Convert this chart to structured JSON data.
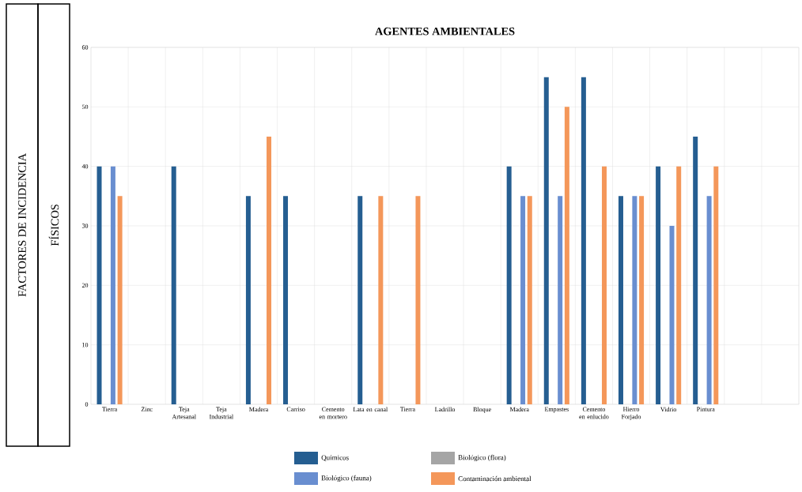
{
  "chart_data": {
    "type": "bar",
    "title": "AGENTES AMBIENTALES",
    "annotations": [
      "FACTORES DE INCIDENCIA",
      "FÍSICOS"
    ],
    "categories": [
      "Tierra",
      "Zinc",
      "Teja Artesanal",
      "Teja Industrial",
      "Madera",
      "Carriso",
      "Cemento en mortero",
      "Lata en canal",
      "Tierra",
      "Ladrillo",
      "Bloque",
      "Madera",
      "Empastes",
      "Cemento en enlucido",
      "Hierro Forjado",
      "Vidrio",
      "Pintura",
      null,
      null
    ],
    "series": [
      {
        "name": "Químicos",
        "color": "#255e91",
        "values": [
          40,
          null,
          40,
          null,
          35,
          35,
          null,
          35,
          null,
          null,
          null,
          40,
          55,
          55,
          35,
          40,
          45,
          null,
          null
        ]
      },
      {
        "name": "Biológico (flora)",
        "color": "#a5a5a5",
        "values": [
          null,
          null,
          null,
          null,
          null,
          null,
          null,
          null,
          null,
          null,
          null,
          null,
          null,
          null,
          null,
          null,
          null,
          null,
          null
        ]
      },
      {
        "name": "Biológico (fauna)",
        "color": "#698ed0",
        "values": [
          40,
          null,
          null,
          null,
          null,
          null,
          null,
          null,
          null,
          null,
          null,
          35,
          35,
          null,
          35,
          30,
          35,
          null,
          null
        ]
      },
      {
        "name": "Contaminación ambiental",
        "color": "#f4975a",
        "values": [
          35,
          null,
          null,
          null,
          45,
          null,
          null,
          35,
          35,
          null,
          null,
          35,
          50,
          40,
          35,
          40,
          40,
          null,
          null
        ]
      }
    ],
    "ylim": [
      0,
      60
    ],
    "yticks": [
      0,
      10,
      20,
      30,
      40,
      50,
      60
    ],
    "grid": true,
    "legend": "bottom"
  }
}
